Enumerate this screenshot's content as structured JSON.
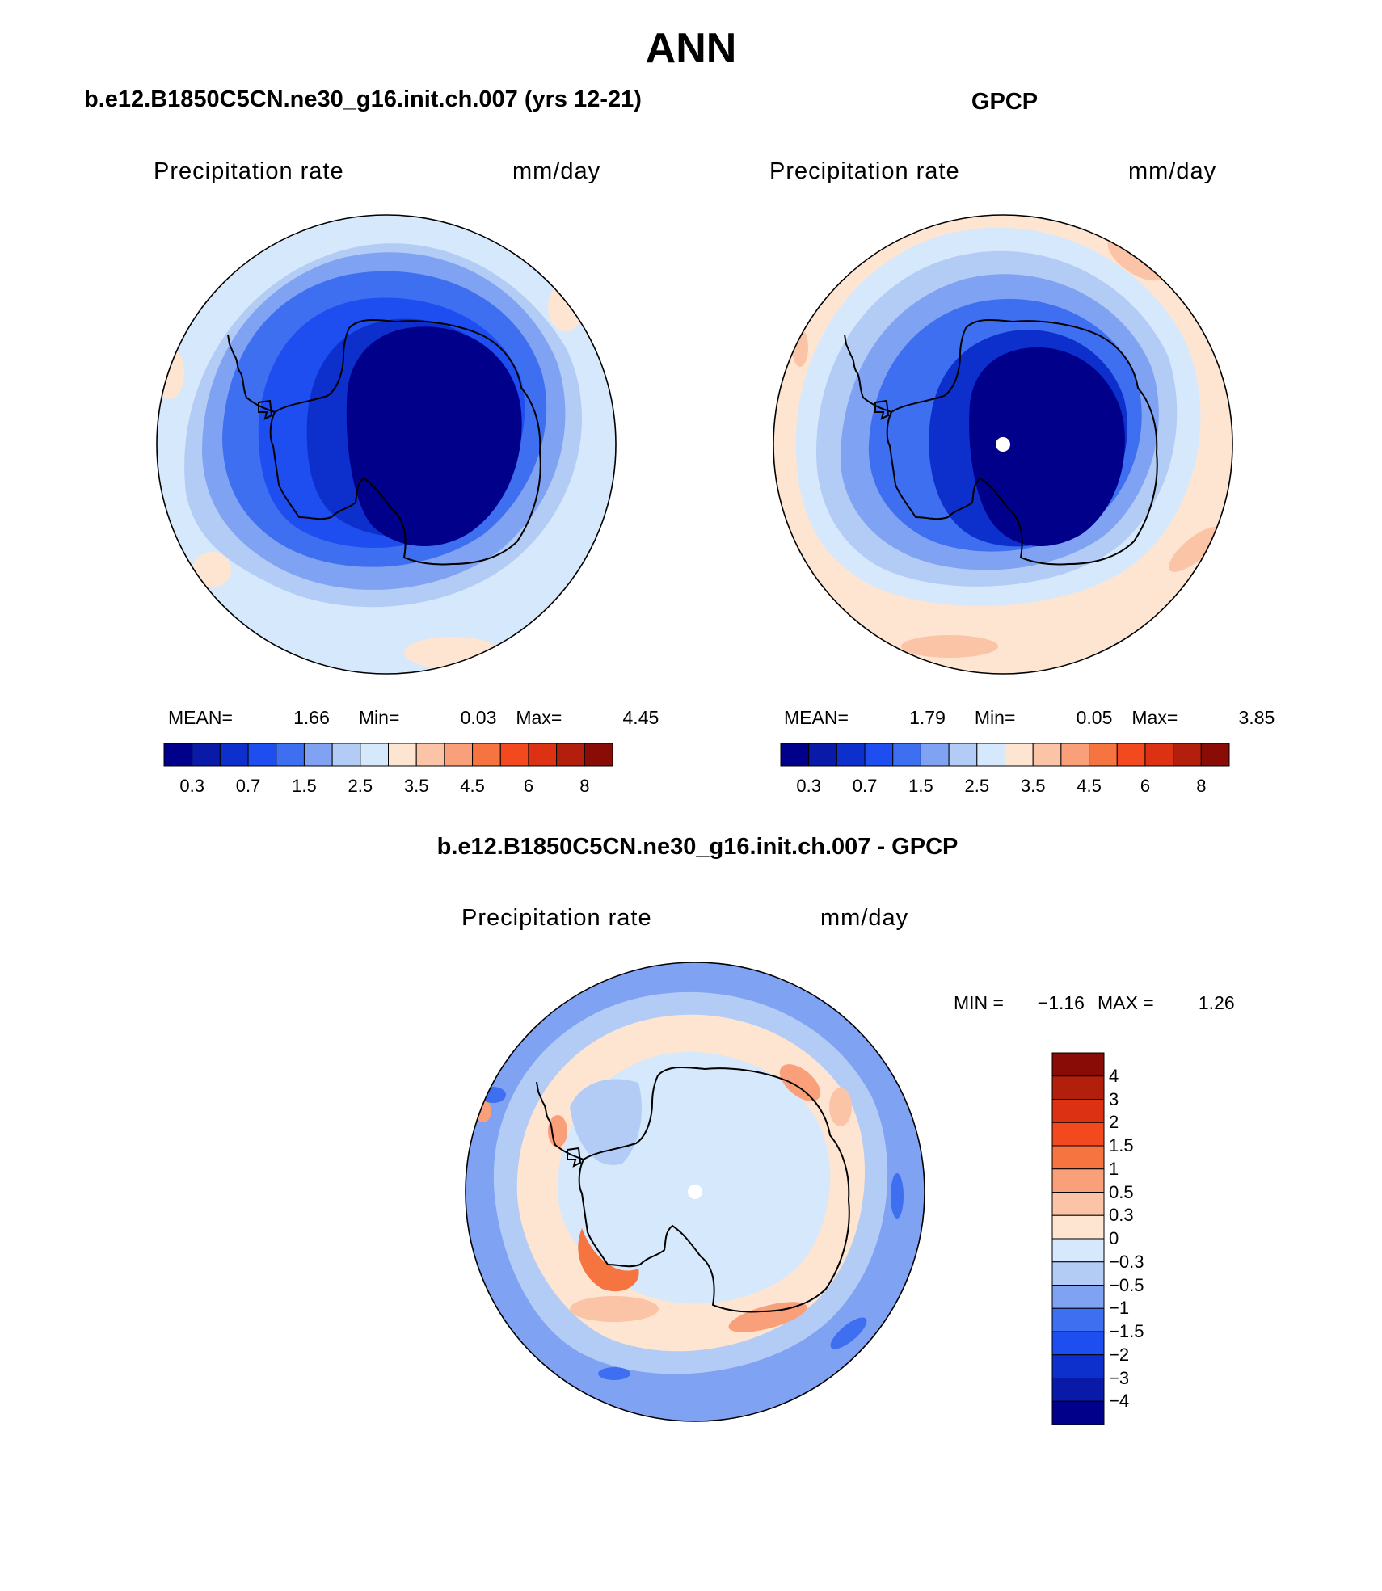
{
  "main_title": "ANN",
  "panels": [
    {
      "title": "b.e12.B1850C5CN.ne30_g16.init.ch.007 (yrs 12-21)",
      "variable": "Precipitation rate",
      "units": "mm/day",
      "stats": {
        "mean_label": "MEAN=",
        "mean": "1.66",
        "min_label": "Min=",
        "min": "0.03",
        "max_label": "Max=",
        "max": "4.45"
      }
    },
    {
      "title": "GPCP",
      "variable": "Precipitation rate",
      "units": "mm/day",
      "stats": {
        "mean_label": "MEAN=",
        "mean": "1.79",
        "min_label": "Min=",
        "min": "0.05",
        "max_label": "Max=",
        "max": "3.85"
      }
    },
    {
      "title": "b.e12.B1850C5CN.ne30_g16.init.ch.007 - GPCP",
      "variable": "Precipitation rate",
      "units": "mm/day",
      "stats": {
        "min_label": "MIN =",
        "min": "−1.16",
        "max_label": "MAX =",
        "max": "1.26"
      }
    }
  ],
  "abs_colorbar": {
    "colors": [
      "#00008b",
      "#0a1aa8",
      "#0d30cc",
      "#1e4df0",
      "#3e6ff0",
      "#7fa2f2",
      "#b3ccf6",
      "#d6e8fb",
      "#fde5d2",
      "#fbc4a6",
      "#f9a07a",
      "#f6743f",
      "#f24a1e",
      "#dc3213",
      "#b21f0c",
      "#8a0c06"
    ],
    "tick_labels": [
      "0.3",
      "0.7",
      "1.5",
      "2.5",
      "3.5",
      "4.5",
      "6",
      "8"
    ]
  },
  "diff_colorbar": {
    "colors": [
      "#8a0c06",
      "#b21f0c",
      "#dc3213",
      "#f24a1e",
      "#f6743f",
      "#f9a07a",
      "#fbc4a6",
      "#fde5d2",
      "#d6e8fb",
      "#b3ccf6",
      "#7fa2f2",
      "#3e6ff0",
      "#1e4df0",
      "#0d30cc",
      "#0a1aa8",
      "#00008b"
    ],
    "tick_labels": [
      "4",
      "3",
      "2",
      "1.5",
      "1",
      "0.5",
      "0.3",
      "0",
      "−0.3",
      "−0.5",
      "−1",
      "−1.5",
      "−2",
      "−3",
      "−4"
    ]
  }
}
